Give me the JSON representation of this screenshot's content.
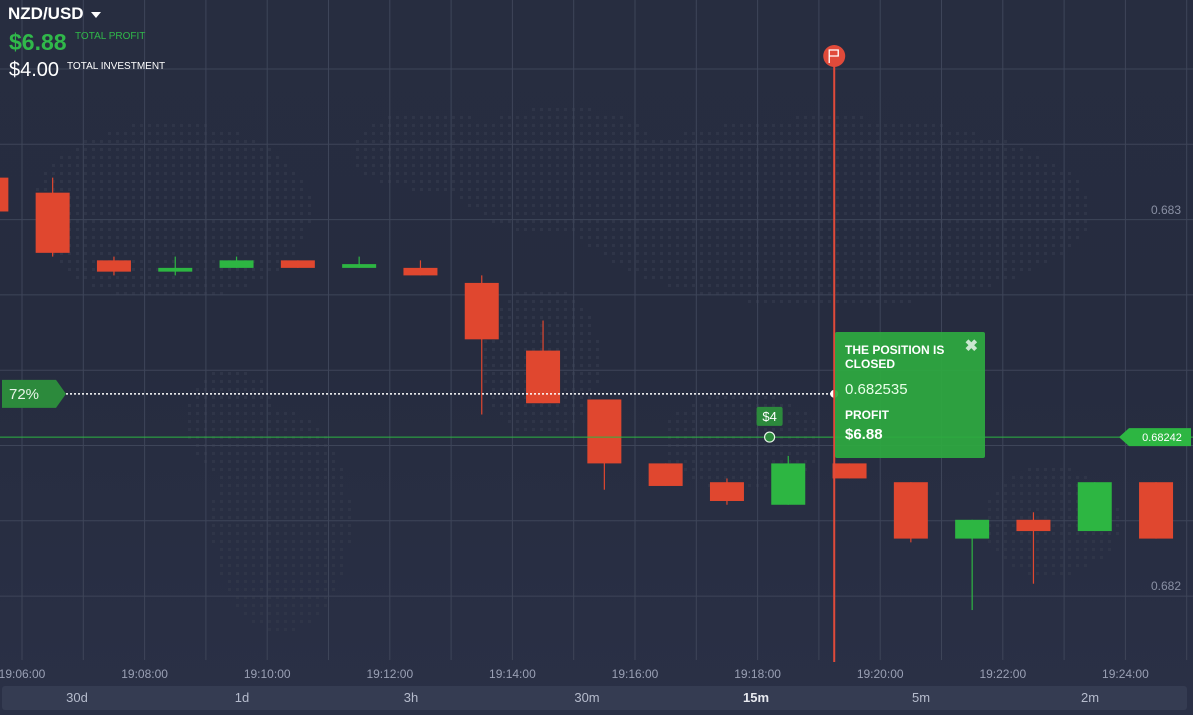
{
  "header": {
    "pair": "NZD/USD",
    "profit_value": "$6.88",
    "profit_label": "TOTAL PROFIT",
    "investment_value": "$4.00",
    "investment_label": "TOTAL INVESTMENT"
  },
  "colors": {
    "up": "#2db642",
    "down": "#e0472f",
    "grid": "#3e4559",
    "expiry_line": "#e04a3a",
    "price_line": "#2db642"
  },
  "chart_data": {
    "type": "candlestick",
    "x_tick_labels": [
      "19:06:00",
      "19:08:00",
      "19:10:00",
      "19:12:00",
      "19:14:00",
      "19:16:00",
      "19:18:00",
      "19:20:00",
      "19:22:00",
      "19:24:00"
    ],
    "y_tick_labels": [
      "0.683",
      "0.682"
    ],
    "y_ticks": [
      0.683,
      0.682
    ],
    "candles": [
      {
        "time": "19:05:30",
        "open": 0.68311,
        "close": 0.68302,
        "high": 0.68313,
        "low": 0.683
      },
      {
        "time": "19:06:30",
        "open": 0.68307,
        "close": 0.68291,
        "high": 0.68311,
        "low": 0.6829
      },
      {
        "time": "19:07:30",
        "open": 0.68289,
        "close": 0.68286,
        "high": 0.6829,
        "low": 0.68285
      },
      {
        "time": "19:08:30",
        "open": 0.68286,
        "close": 0.68287,
        "high": 0.6829,
        "low": 0.68285
      },
      {
        "time": "19:09:30",
        "open": 0.68287,
        "close": 0.68289,
        "high": 0.6829,
        "low": 0.68287
      },
      {
        "time": "19:10:30",
        "open": 0.68289,
        "close": 0.68287,
        "high": 0.68289,
        "low": 0.68287
      },
      {
        "time": "19:11:30",
        "open": 0.68287,
        "close": 0.68288,
        "high": 0.6829,
        "low": 0.68287
      },
      {
        "time": "19:12:30",
        "open": 0.68287,
        "close": 0.68285,
        "high": 0.68289,
        "low": 0.68285
      },
      {
        "time": "19:13:30",
        "open": 0.68283,
        "close": 0.68268,
        "high": 0.68285,
        "low": 0.68248
      },
      {
        "time": "19:14:30",
        "open": 0.68265,
        "close": 0.68251,
        "high": 0.68273,
        "low": 0.68251
      },
      {
        "time": "19:15:30",
        "open": 0.68252,
        "close": 0.68235,
        "high": 0.68252,
        "low": 0.68228
      },
      {
        "time": "19:16:30",
        "open": 0.68235,
        "close": 0.68229,
        "high": 0.68235,
        "low": 0.68229
      },
      {
        "time": "19:17:30",
        "open": 0.6823,
        "close": 0.68225,
        "high": 0.68231,
        "low": 0.68224
      },
      {
        "time": "19:18:30",
        "open": 0.68224,
        "close": 0.68235,
        "high": 0.68237,
        "low": 0.68224
      },
      {
        "time": "19:19:30",
        "open": 0.68235,
        "close": 0.68231,
        "high": 0.68235,
        "low": 0.68231
      },
      {
        "time": "19:20:30",
        "open": 0.6823,
        "close": 0.68215,
        "high": 0.6823,
        "low": 0.68214
      },
      {
        "time": "19:21:30",
        "open": 0.68215,
        "close": 0.6822,
        "high": 0.6822,
        "low": 0.68196
      },
      {
        "time": "19:22:30",
        "open": 0.6822,
        "close": 0.68217,
        "high": 0.68222,
        "low": 0.68203
      },
      {
        "time": "19:23:30",
        "open": 0.68217,
        "close": 0.6823,
        "high": 0.6823,
        "low": 0.68217
      },
      {
        "time": "19:24:30",
        "open": 0.6823,
        "close": 0.68215,
        "high": 0.6823,
        "low": 0.68215
      }
    ],
    "current_price": 0.68242,
    "current_price_label": "0.68242",
    "entry_price": 0.682535,
    "entry_percent_label": "72%",
    "trade_marker_label": "$4",
    "expiry_time": "19:19:15"
  },
  "popup": {
    "title": "THE POSITION IS CLOSED",
    "close_symbol": "✖",
    "rate": "0.682535",
    "profit_label": "PROFIT",
    "profit_value": "$6.88"
  },
  "timeframes": [
    {
      "label": "30d"
    },
    {
      "label": "1d"
    },
    {
      "label": "3h"
    },
    {
      "label": "30m"
    },
    {
      "label": "15m",
      "active": true
    },
    {
      "label": "5m"
    },
    {
      "label": "2m"
    }
  ]
}
